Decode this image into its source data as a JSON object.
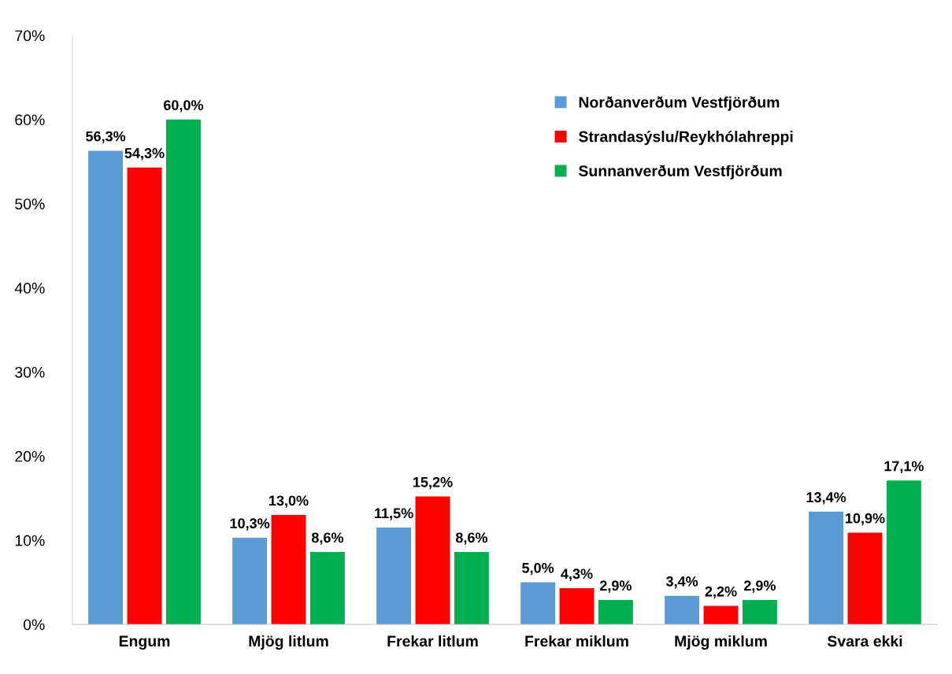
{
  "chart_data": {
    "type": "bar",
    "categories": [
      "Engum",
      "Mjög litlum",
      "Frekar litlum",
      "Frekar miklum",
      "Mjög miklum",
      "Svara ekki"
    ],
    "series": [
      {
        "name": "Norðanverðum Vestfjörðum",
        "color": "#5b9bd5",
        "values": [
          56.3,
          10.3,
          11.5,
          5.0,
          3.4,
          13.4
        ],
        "value_labels": [
          "56,3%",
          "10,3%",
          "11,5%",
          "5,0%",
          "3,4%",
          "13,4%"
        ]
      },
      {
        "name": "Strandasýslu/Reykhólahreppi",
        "color": "#ff0000",
        "values": [
          54.3,
          13.0,
          15.2,
          4.3,
          2.2,
          10.9
        ],
        "value_labels": [
          "54,3%",
          "13,0%",
          "15,2%",
          "4,3%",
          "2,2%",
          "10,9%"
        ]
      },
      {
        "name": "Sunnanverðum Vestfjörðum",
        "color": "#00b050",
        "values": [
          60.0,
          8.6,
          8.6,
          2.9,
          2.9,
          17.1
        ],
        "value_labels": [
          "60,0%",
          "8,6%",
          "8,6%",
          "2,9%",
          "2,9%",
          "17,1%"
        ]
      }
    ],
    "ylim": [
      0,
      70
    ],
    "yticks": [
      {
        "value": 0,
        "label": "0%"
      },
      {
        "value": 10,
        "label": "10%"
      },
      {
        "value": 20,
        "label": "20%"
      },
      {
        "value": 30,
        "label": "30%"
      },
      {
        "value": 40,
        "label": "40%"
      },
      {
        "value": 50,
        "label": "50%"
      },
      {
        "value": 60,
        "label": "60%"
      },
      {
        "value": 70,
        "label": "70%"
      }
    ],
    "grid": false,
    "legend": "top right"
  }
}
